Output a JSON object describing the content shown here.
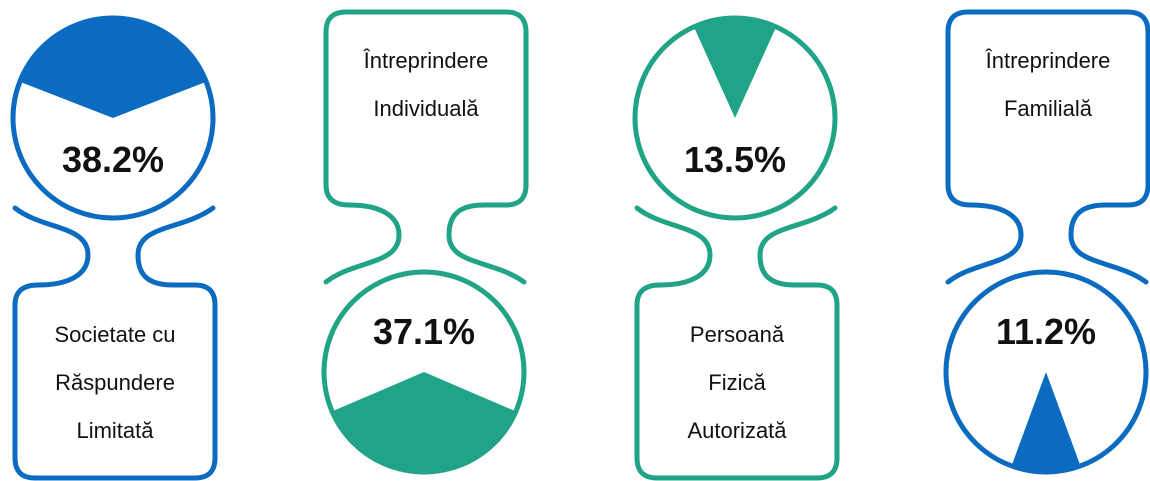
{
  "chart_data": {
    "type": "pictorial",
    "categories": [
      "Societate cu Răspundere Limitată",
      "Întreprindere Individuală",
      "Persoană Fizică Autorizată",
      "Întreprindere Familială"
    ],
    "values": [
      38.2,
      37.1,
      13.5,
      11.2
    ],
    "value_labels": [
      "38.2%",
      "37.1%",
      "13.5%",
      "11.2%"
    ],
    "colors": [
      "#0b6bc1",
      "#20a386",
      "#20a386",
      "#0b6bc1"
    ]
  }
}
